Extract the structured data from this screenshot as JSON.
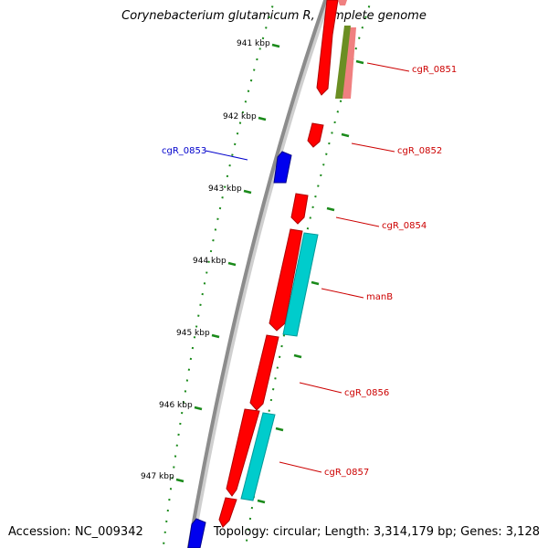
{
  "map": {
    "title": "Corynebacterium glutamicum R, complete genome",
    "accession": "Accession: NC_009342",
    "summary": "Topology: circular; Length: 3,314,179 bp; Genes: 3,128"
  },
  "colors": {
    "backbone": "#8c8c8c",
    "tick": "#1a8a1a",
    "forward_cds": "#ff0000",
    "reverse_cds": "#0000ee",
    "rna": "#00cccc",
    "pseudo": "#f08080",
    "misc": "#6b8e23",
    "label_forward": "#cc0000",
    "label_reverse": "#0000cc"
  },
  "ticks": [
    {
      "label": "941 kbp"
    },
    {
      "label": "942 kbp"
    },
    {
      "label": "943 kbp"
    },
    {
      "label": "944 kbp"
    },
    {
      "label": "945 kbp"
    },
    {
      "label": "946 kbp"
    },
    {
      "label": "947 kbp"
    }
  ],
  "gene_labels": [
    {
      "name": "cgR_0851",
      "strand": "forward"
    },
    {
      "name": "cgR_0852",
      "strand": "forward"
    },
    {
      "name": "cgR_0853",
      "strand": "reverse"
    },
    {
      "name": "cgR_0854",
      "strand": "forward"
    },
    {
      "name": "manB",
      "strand": "forward"
    },
    {
      "name": "cgR_0856",
      "strand": "forward"
    },
    {
      "name": "cgR_0857",
      "strand": "forward"
    }
  ]
}
